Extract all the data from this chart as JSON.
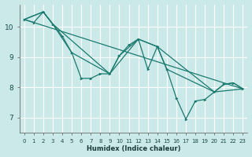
{
  "background_color": "#cce9e9",
  "grid_color": "#ffffff",
  "line_color": "#1a7a6e",
  "xlabel": "Humidex (Indice chaleur)",
  "xlim": [
    -0.5,
    23.5
  ],
  "ylim": [
    6.5,
    10.75
  ],
  "yticks": [
    7,
    8,
    9,
    10
  ],
  "xticks": [
    0,
    1,
    2,
    3,
    4,
    5,
    6,
    7,
    8,
    9,
    10,
    11,
    12,
    13,
    14,
    15,
    16,
    17,
    18,
    19,
    20,
    21,
    22,
    23
  ],
  "series_main": {
    "x": [
      0,
      1,
      2,
      3,
      4,
      5,
      6,
      7,
      8,
      9,
      10,
      11,
      12,
      13,
      14,
      15,
      16,
      17,
      18,
      19,
      20,
      21,
      22,
      23
    ],
    "y": [
      10.25,
      10.15,
      10.5,
      10.1,
      9.7,
      9.15,
      8.3,
      8.3,
      8.45,
      8.45,
      9.05,
      9.4,
      9.6,
      8.6,
      9.35,
      8.6,
      7.65,
      6.95,
      7.55,
      7.6,
      7.85,
      8.1,
      8.15,
      7.95
    ]
  },
  "series_smooth1": {
    "x": [
      0,
      2,
      3,
      5,
      9,
      10,
      12,
      14,
      15,
      20,
      21,
      22,
      23
    ],
    "y": [
      10.25,
      10.5,
      10.1,
      9.15,
      8.45,
      9.05,
      9.6,
      9.35,
      8.6,
      7.85,
      8.1,
      8.15,
      7.95
    ]
  },
  "series_smooth2": {
    "x": [
      0,
      2,
      3,
      9,
      12,
      14,
      20,
      23
    ],
    "y": [
      10.25,
      10.5,
      10.1,
      8.45,
      9.6,
      9.35,
      7.85,
      7.95
    ]
  },
  "series_linear": {
    "x": [
      0,
      23
    ],
    "y": [
      10.25,
      7.95
    ]
  }
}
